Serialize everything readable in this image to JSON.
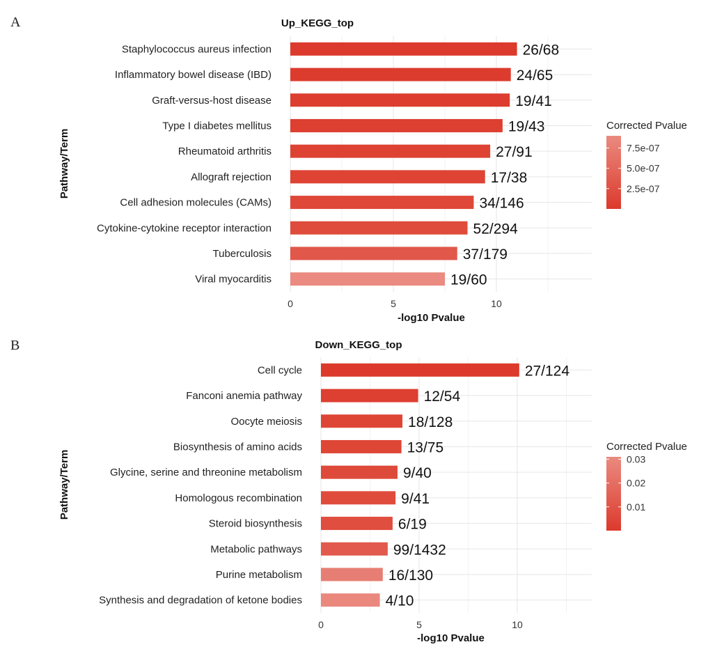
{
  "chart_data": [
    {
      "panel": "A",
      "type": "bar",
      "orientation": "horizontal",
      "title": "Up_KEGG_top",
      "xlabel": "-log10 Pvalue",
      "ylabel": "Pathway/Term",
      "xlim": [
        0,
        14.5
      ],
      "xticks": [
        "0",
        "5",
        "10"
      ],
      "grid": true,
      "categories": [
        "Staphylococcus aureus infection",
        "Inflammatory bowel disease (IBD)",
        "Graft-versus-host disease",
        "Type I diabetes mellitus",
        "Rheumatoid arthritis",
        "Allograft rejection",
        "Cell adhesion molecules (CAMs)",
        "Cytokine-cytokine receptor interaction",
        "Tuberculosis",
        "Viral myocarditis"
      ],
      "values": [
        11.0,
        10.7,
        10.65,
        10.3,
        9.7,
        9.45,
        8.9,
        8.6,
        8.1,
        7.5
      ],
      "labels": [
        "26/68",
        "24/65",
        "19/41",
        "19/43",
        "27/91",
        "17/38",
        "34/146",
        "52/294",
        "37/179",
        "19/60"
      ],
      "colors": [
        "#DC3A2C",
        "#DC3C2E",
        "#DD3D2F",
        "#DD3F30",
        "#DE4233",
        "#DE4334",
        "#DF4838",
        "#E04C3C",
        "#E1574A",
        "#EA8A80"
      ],
      "legend": {
        "title": "Corrected Pvalue",
        "ticks": [
          "7.5e-07",
          "5.0e-07",
          "2.5e-07"
        ],
        "range": [
          0,
          9e-07
        ],
        "tick_values": [
          7.5e-07,
          5e-07,
          2.5e-07
        ],
        "color_low": "#DC3A2C",
        "color_high": "#EA8A80",
        "placement": "right"
      }
    },
    {
      "panel": "B",
      "type": "bar",
      "orientation": "horizontal",
      "title": "Down_KEGG_top",
      "xlabel": "-log10 Pvalue",
      "ylabel": "Pathway/Term",
      "xlim": [
        0,
        13.5
      ],
      "xticks": [
        "0",
        "5",
        "10"
      ],
      "grid": true,
      "categories": [
        "Cell cycle",
        "Fanconi anemia pathway",
        "Oocyte meiosis",
        "Biosynthesis of amino acids",
        "Glycine, serine and threonine metabolism",
        "Homologous recombination",
        "Steroid biosynthesis",
        "Metabolic pathways",
        "Purine metabolism",
        "Synthesis and degradation of ketone bodies"
      ],
      "values": [
        10.1,
        4.95,
        4.15,
        4.1,
        3.9,
        3.8,
        3.65,
        3.4,
        3.15,
        3.0
      ],
      "labels": [
        "27/124",
        "12/54",
        "18/128",
        "13/75",
        "9/40",
        "9/41",
        "6/19",
        "99/1432",
        "16/130",
        "4/10"
      ],
      "colors": [
        "#DC3A2C",
        "#DD3F30",
        "#DE4535",
        "#DE4636",
        "#DE4A3A",
        "#DF4C3C",
        "#E04E3F",
        "#E15A4D",
        "#E77E74",
        "#EA887E"
      ],
      "legend": {
        "title": "Corrected Pvalue",
        "ticks": [
          "0.03",
          "0.02",
          "0.01"
        ],
        "range": [
          0,
          0.031
        ],
        "tick_values": [
          0.03,
          0.02,
          0.01
        ],
        "color_low": "#DC3A2C",
        "color_high": "#EA8A80",
        "placement": "right"
      }
    }
  ],
  "panel_letters": [
    "A",
    "B"
  ]
}
